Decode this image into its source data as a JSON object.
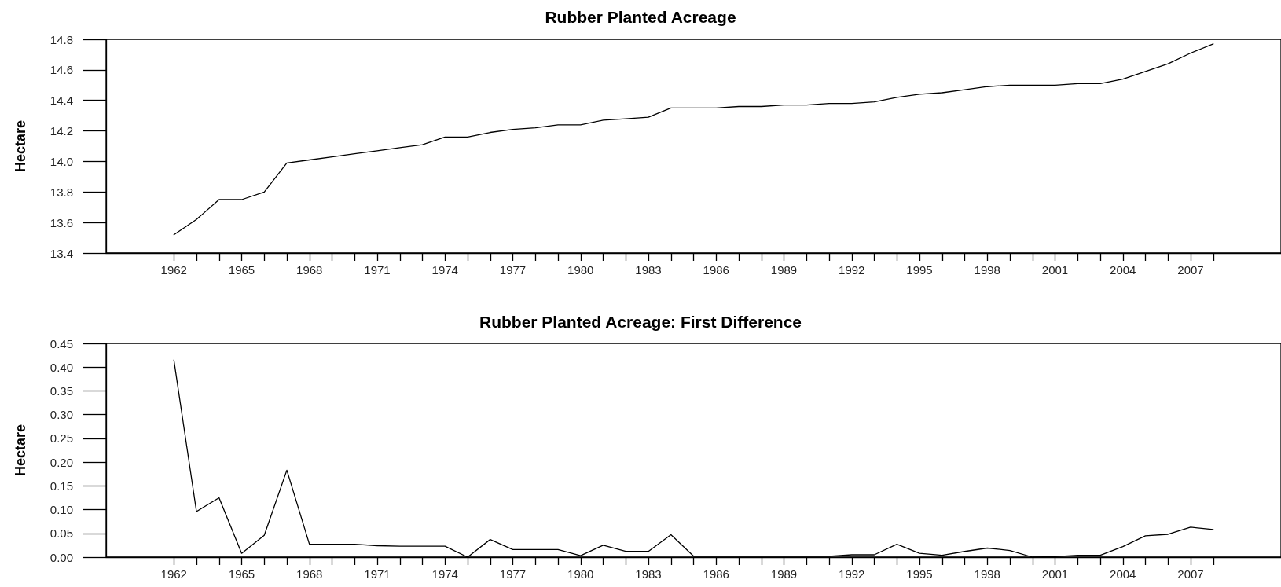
{
  "chart_data": [
    {
      "type": "line",
      "title": "Rubber Planted Acreage",
      "ylabel": "Hectare",
      "x": [
        1962,
        1963,
        1964,
        1965,
        1966,
        1967,
        1968,
        1969,
        1970,
        1971,
        1972,
        1973,
        1974,
        1975,
        1976,
        1977,
        1978,
        1979,
        1980,
        1981,
        1982,
        1983,
        1984,
        1985,
        1986,
        1987,
        1988,
        1989,
        1990,
        1991,
        1992,
        1993,
        1994,
        1995,
        1996,
        1997,
        1998,
        1999,
        2000,
        2001,
        2002,
        2003,
        2004,
        2005,
        2006,
        2007,
        2008
      ],
      "series": [
        {
          "color": "#000000",
          "values": [
            13.52,
            13.62,
            13.75,
            13.75,
            13.8,
            13.99,
            14.01,
            14.03,
            14.05,
            14.07,
            14.09,
            14.11,
            14.16,
            14.16,
            14.19,
            14.21,
            14.22,
            14.24,
            14.24,
            14.27,
            14.28,
            14.29,
            14.35,
            14.35,
            14.35,
            14.36,
            14.36,
            14.37,
            14.37,
            14.38,
            14.38,
            14.39,
            14.42,
            14.44,
            14.45,
            14.47,
            14.49,
            14.5,
            14.5,
            14.5,
            14.51,
            14.51,
            14.54,
            14.59,
            14.64,
            14.71,
            14.77
          ]
        }
      ],
      "xlim": [
        1959,
        2011
      ],
      "xticks": [
        1962,
        {
          "value": 1963,
          "label": null
        },
        {
          "value": 1964,
          "label": null
        },
        1965,
        {
          "value": 1966,
          "label": null
        },
        {
          "value": 1967,
          "label": null
        },
        1968,
        {
          "value": 1969,
          "label": null
        },
        {
          "value": 1970,
          "label": null
        },
        1971,
        {
          "value": 1972,
          "label": null
        },
        {
          "value": 1973,
          "label": null
        },
        1974,
        {
          "value": 1975,
          "label": null
        },
        {
          "value": 1976,
          "label": null
        },
        1977,
        {
          "value": 1978,
          "label": null
        },
        {
          "value": 1979,
          "label": null
        },
        1980,
        {
          "value": 1981,
          "label": null
        },
        {
          "value": 1982,
          "label": null
        },
        1983,
        {
          "value": 1984,
          "label": null
        },
        {
          "value": 1985,
          "label": null
        },
        1986,
        {
          "value": 1987,
          "label": null
        },
        {
          "value": 1988,
          "label": null
        },
        1989,
        {
          "value": 1990,
          "label": null
        },
        {
          "value": 1991,
          "label": null
        },
        1992,
        {
          "value": 1993,
          "label": null
        },
        {
          "value": 1994,
          "label": null
        },
        1995,
        {
          "value": 1996,
          "label": null
        },
        {
          "value": 1997,
          "label": null
        },
        1998,
        {
          "value": 1999,
          "label": null
        },
        {
          "value": 2000,
          "label": null
        },
        2001,
        {
          "value": 2002,
          "label": null
        },
        {
          "value": 2003,
          "label": null
        },
        2004,
        {
          "value": 2005,
          "label": null
        },
        {
          "value": 2006,
          "label": null
        },
        2007,
        {
          "value": 2008,
          "label": null
        }
      ],
      "ylim": [
        13.4,
        14.8
      ],
      "yticks": [
        {
          "value": 13.4,
          "label": "13.4"
        },
        13.6,
        13.8,
        {
          "value": 14.0,
          "label": "14.0"
        },
        14.2,
        14.4,
        14.6,
        14.8
      ],
      "grid": false,
      "marker": "none",
      "line_style": "solid"
    },
    {
      "type": "line",
      "title": "Rubber Planted Acreage: First Difference",
      "ylabel": "Hectare",
      "x": [
        1962,
        1963,
        1964,
        1965,
        1966,
        1967,
        1968,
        1969,
        1970,
        1971,
        1972,
        1973,
        1974,
        1975,
        1976,
        1977,
        1978,
        1979,
        1980,
        1981,
        1982,
        1983,
        1984,
        1985,
        1986,
        1987,
        1988,
        1989,
        1990,
        1991,
        1992,
        1993,
        1994,
        1995,
        1996,
        1997,
        1998,
        1999,
        2000,
        2001,
        2002,
        2003,
        2004,
        2005,
        2006,
        2007,
        2008
      ],
      "series": [
        {
          "color": "#000000",
          "values": [
            0.415,
            0.096,
            0.125,
            0.008,
            0.046,
            0.183,
            0.027,
            0.027,
            0.027,
            0.024,
            0.023,
            0.023,
            0.023,
            0.0,
            0.037,
            0.016,
            0.016,
            0.016,
            0.003,
            0.025,
            0.012,
            0.012,
            0.047,
            0.002,
            0.002,
            0.002,
            0.002,
            0.002,
            0.002,
            0.002,
            0.005,
            0.005,
            0.027,
            0.008,
            0.004,
            0.012,
            0.019,
            0.014,
            0.0,
            0.001,
            0.004,
            0.004,
            0.022,
            0.045,
            0.048,
            0.063,
            0.058
          ]
        }
      ],
      "xlim": [
        1959,
        2011
      ],
      "xticks": [
        1962,
        {
          "value": 1963,
          "label": null
        },
        {
          "value": 1964,
          "label": null
        },
        1965,
        {
          "value": 1966,
          "label": null
        },
        {
          "value": 1967,
          "label": null
        },
        1968,
        {
          "value": 1969,
          "label": null
        },
        {
          "value": 1970,
          "label": null
        },
        1971,
        {
          "value": 1972,
          "label": null
        },
        {
          "value": 1973,
          "label": null
        },
        1974,
        {
          "value": 1975,
          "label": null
        },
        {
          "value": 1976,
          "label": null
        },
        1977,
        {
          "value": 1978,
          "label": null
        },
        {
          "value": 1979,
          "label": null
        },
        1980,
        {
          "value": 1981,
          "label": null
        },
        {
          "value": 1982,
          "label": null
        },
        1983,
        {
          "value": 1984,
          "label": null
        },
        {
          "value": 1985,
          "label": null
        },
        1986,
        {
          "value": 1987,
          "label": null
        },
        {
          "value": 1988,
          "label": null
        },
        1989,
        {
          "value": 1990,
          "label": null
        },
        {
          "value": 1991,
          "label": null
        },
        1992,
        {
          "value": 1993,
          "label": null
        },
        {
          "value": 1994,
          "label": null
        },
        1995,
        {
          "value": 1996,
          "label": null
        },
        {
          "value": 1997,
          "label": null
        },
        1998,
        {
          "value": 1999,
          "label": null
        },
        {
          "value": 2000,
          "label": null
        },
        2001,
        {
          "value": 2002,
          "label": null
        },
        {
          "value": 2003,
          "label": null
        },
        2004,
        {
          "value": 2005,
          "label": null
        },
        {
          "value": 2006,
          "label": null
        },
        2007,
        {
          "value": 2008,
          "label": null
        }
      ],
      "ylim": [
        0,
        0.45
      ],
      "yticks": [
        {
          "value": 0,
          "label": "0.00"
        },
        {
          "value": 0.05,
          "label": "0.05"
        },
        {
          "value": 0.1,
          "label": "0.10"
        },
        {
          "value": 0.15,
          "label": "0.15"
        },
        {
          "value": 0.2,
          "label": "0.20"
        },
        {
          "value": 0.25,
          "label": "0.25"
        },
        {
          "value": 0.3,
          "label": "0.30"
        },
        {
          "value": 0.35,
          "label": "0.35"
        },
        {
          "value": 0.4,
          "label": "0.40"
        },
        {
          "value": 0.45,
          "label": "0.45"
        }
      ],
      "grid": false,
      "marker": "none",
      "line_style": "solid"
    }
  ]
}
